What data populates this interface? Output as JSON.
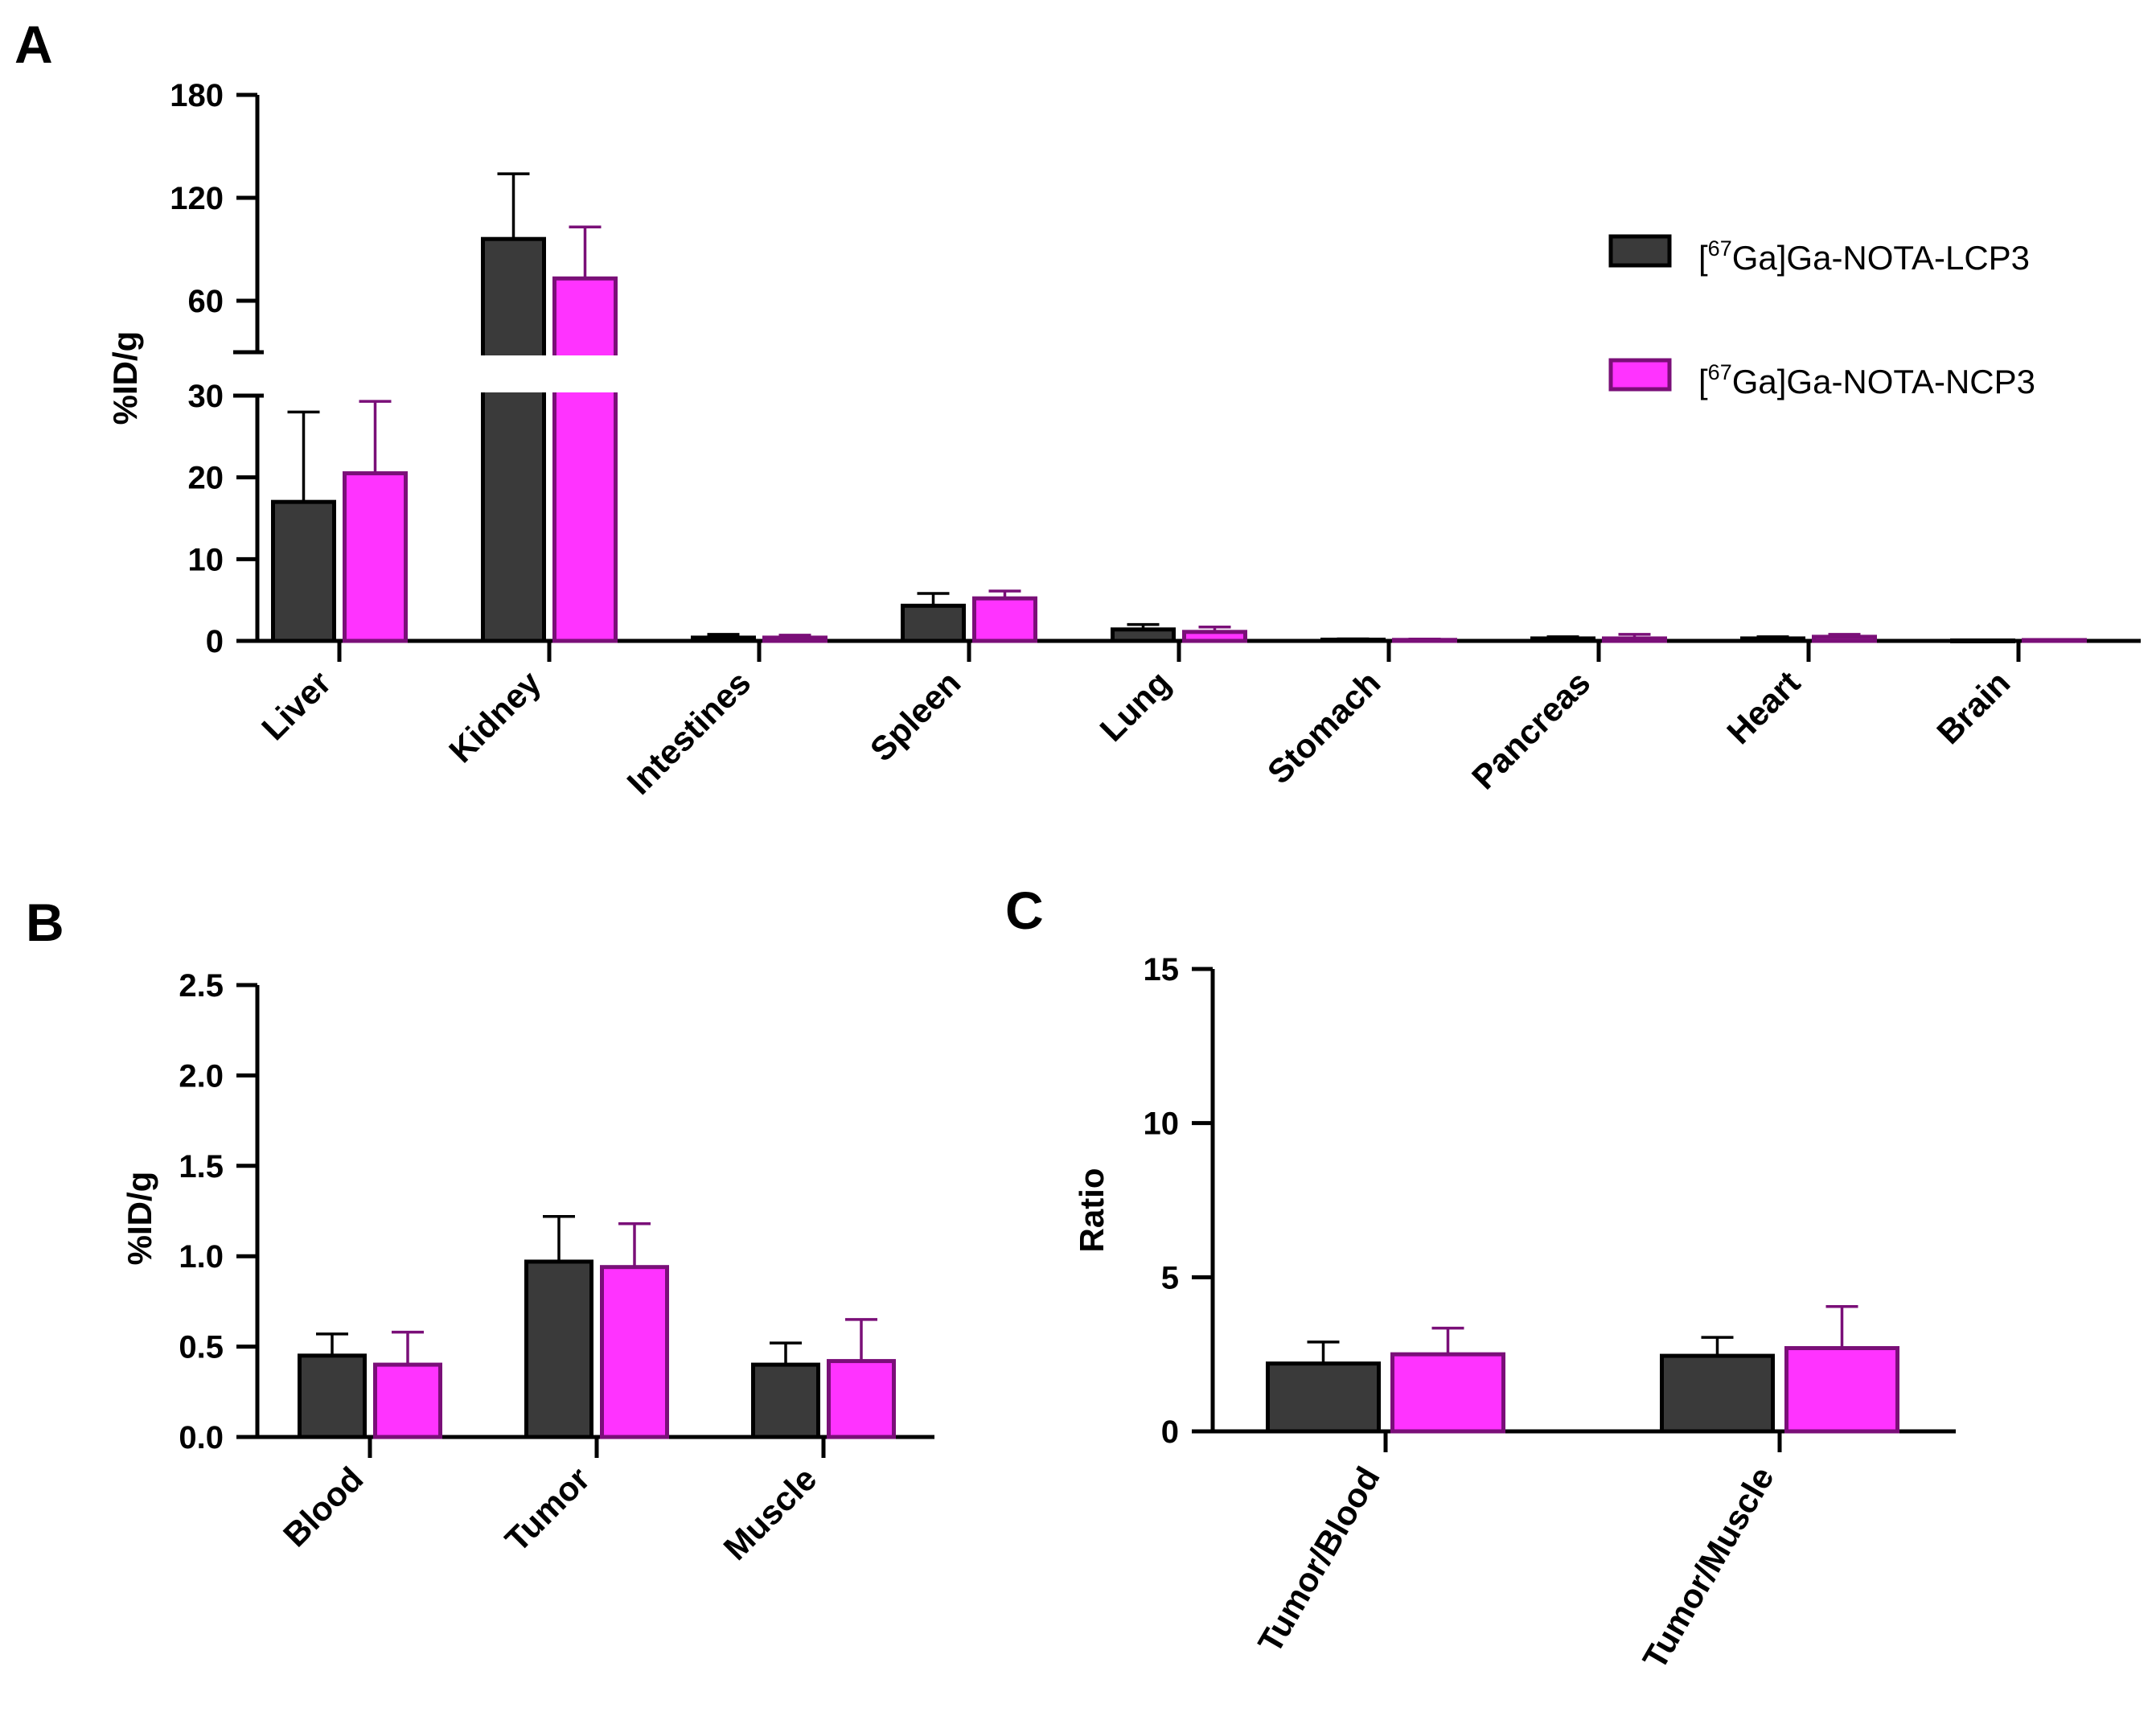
{
  "colors": {
    "s1_fill": "#3a3a3a",
    "s1_stroke": "#000000",
    "s2_fill": "#ff33ff",
    "s2_stroke": "#7a0f78"
  },
  "legend": [
    {
      "sup": "67",
      "text": "[67Ga]Ga-NOTA-LCP3",
      "pre": "[",
      "post": "Ga]Ga-NOTA-LCP3"
    },
    {
      "sup": "67",
      "text": "[67Ga]Ga-NOTA-NCP3",
      "pre": "[",
      "post": "Ga]Ga-NOTA-NCP3"
    }
  ],
  "chart_data": [
    {
      "panel": "A",
      "type": "bar",
      "ylabel": "%ID/g",
      "y_axis_break": {
        "lower": [
          0,
          30
        ],
        "upper": [
          30,
          180
        ]
      },
      "yticks_lower": [
        0,
        10,
        20,
        30
      ],
      "yticks_upper": [
        60,
        120,
        180
      ],
      "categories": [
        "Liver",
        "Kidney",
        "Intestines",
        "Spleen",
        "Lung",
        "Stomach",
        "Pancreas",
        "Heart",
        "Brain"
      ],
      "series": [
        {
          "name": "[67Ga]Ga-NOTA-LCP3",
          "values": [
            17,
            96,
            0.4,
            4.3,
            1.4,
            0.15,
            0.3,
            0.3,
            0.05
          ],
          "errors": [
            11,
            38,
            0.4,
            1.5,
            0.6,
            0.1,
            0.2,
            0.2,
            0.05
          ]
        },
        {
          "name": "[67Ga]Ga-NOTA-NCP3",
          "values": [
            20.5,
            73,
            0.4,
            5.2,
            1.1,
            0.12,
            0.3,
            0.5,
            0.1
          ],
          "errors": [
            8.8,
            30,
            0.3,
            0.9,
            0.6,
            0.1,
            0.5,
            0.3,
            0.05
          ]
        }
      ]
    },
    {
      "panel": "B",
      "type": "bar",
      "ylabel": "%ID/g",
      "ylim": [
        0,
        2.5
      ],
      "yticks": [
        "0.0",
        "0.5",
        "1.0",
        "1.5",
        "2.0",
        "2.5"
      ],
      "categories": [
        "Blood",
        "Tumor",
        "Muscle"
      ],
      "series": [
        {
          "name": "[67Ga]Ga-NOTA-LCP3",
          "values": [
            0.45,
            0.97,
            0.4
          ],
          "errors": [
            0.12,
            0.25,
            0.12
          ]
        },
        {
          "name": "[67Ga]Ga-NOTA-NCP3",
          "values": [
            0.4,
            0.94,
            0.42
          ],
          "errors": [
            0.18,
            0.24,
            0.23
          ]
        }
      ]
    },
    {
      "panel": "C",
      "type": "bar",
      "ylabel": "Ratio",
      "ylim": [
        0,
        15
      ],
      "yticks": [
        "0",
        "5",
        "10",
        "15"
      ],
      "categories": [
        "Tumor/Blood",
        "Tumor/Muscle"
      ],
      "series": [
        {
          "name": "[67Ga]Ga-NOTA-LCP3",
          "values": [
            2.2,
            2.45
          ],
          "errors": [
            0.7,
            0.6
          ]
        },
        {
          "name": "[67Ga]Ga-NOTA-NCP3",
          "values": [
            2.5,
            2.7
          ],
          "errors": [
            0.85,
            1.35
          ]
        }
      ]
    }
  ]
}
